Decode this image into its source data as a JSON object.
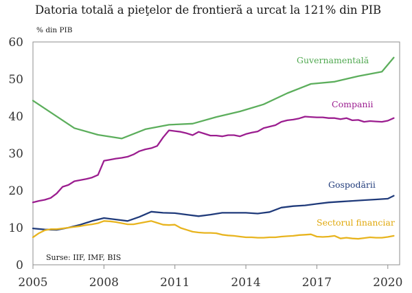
{
  "chart_data": {
    "type": "line",
    "title": "Datoria totală a pieţelor de frontieră a urcat la 121% din PIB",
    "ylabel": "% din PIB",
    "xlabel": "",
    "xlim": [
      2005,
      2020.5
    ],
    "ylim": [
      0,
      60
    ],
    "yticks": [
      0,
      10,
      20,
      30,
      40,
      50,
      60
    ],
    "xticks": [
      2005,
      2008,
      2011,
      2014,
      2017,
      2020
    ],
    "grid": false,
    "source": "Surse: IIF, IMF, BIS",
    "series": [
      {
        "name": "Guvernamentală",
        "color": "#5cae5c",
        "label_color": "#4fa84f",
        "points": [
          [
            2005.0,
            44.2
          ],
          [
            2006.75,
            36.8
          ],
          [
            2007.75,
            35.0
          ],
          [
            2008.75,
            34.0
          ],
          [
            2009.75,
            36.5
          ],
          [
            2010.75,
            37.7
          ],
          [
            2011.75,
            38.0
          ],
          [
            2012.75,
            39.8
          ],
          [
            2013.75,
            41.3
          ],
          [
            2014.75,
            43.2
          ],
          [
            2015.75,
            46.2
          ],
          [
            2016.75,
            48.7
          ],
          [
            2017.75,
            49.3
          ],
          [
            2018.75,
            50.8
          ],
          [
            2019.75,
            52.0
          ],
          [
            2020.25,
            55.8
          ]
        ]
      },
      {
        "name": "Companii",
        "color": "#9b1d8f",
        "label_color": "#9b1d8f",
        "points": [
          [
            2005.0,
            16.8
          ],
          [
            2005.25,
            17.2
          ],
          [
            2005.5,
            17.5
          ],
          [
            2005.75,
            18.0
          ],
          [
            2006.0,
            19.2
          ],
          [
            2006.25,
            21.0
          ],
          [
            2006.5,
            21.5
          ],
          [
            2006.75,
            22.5
          ],
          [
            2007.0,
            22.8
          ],
          [
            2007.25,
            23.1
          ],
          [
            2007.5,
            23.5
          ],
          [
            2007.75,
            24.2
          ],
          [
            2008.0,
            28.0
          ],
          [
            2008.25,
            28.3
          ],
          [
            2008.5,
            28.6
          ],
          [
            2008.75,
            28.8
          ],
          [
            2009.0,
            29.1
          ],
          [
            2009.25,
            29.7
          ],
          [
            2009.5,
            30.6
          ],
          [
            2009.75,
            31.1
          ],
          [
            2010.0,
            31.4
          ],
          [
            2010.25,
            32.0
          ],
          [
            2010.5,
            34.3
          ],
          [
            2010.75,
            36.2
          ],
          [
            2011.0,
            36.0
          ],
          [
            2011.25,
            35.8
          ],
          [
            2011.5,
            35.4
          ],
          [
            2011.75,
            34.9
          ],
          [
            2012.0,
            35.8
          ],
          [
            2012.25,
            35.3
          ],
          [
            2012.5,
            34.8
          ],
          [
            2012.75,
            34.8
          ],
          [
            2013.0,
            34.6
          ],
          [
            2013.25,
            34.9
          ],
          [
            2013.5,
            34.9
          ],
          [
            2013.75,
            34.6
          ],
          [
            2014.0,
            35.2
          ],
          [
            2014.25,
            35.6
          ],
          [
            2014.5,
            35.9
          ],
          [
            2014.75,
            36.8
          ],
          [
            2015.0,
            37.2
          ],
          [
            2015.25,
            37.6
          ],
          [
            2015.5,
            38.5
          ],
          [
            2015.75,
            38.9
          ],
          [
            2016.0,
            39.1
          ],
          [
            2016.25,
            39.4
          ],
          [
            2016.5,
            39.9
          ],
          [
            2016.75,
            39.8
          ],
          [
            2017.0,
            39.7
          ],
          [
            2017.25,
            39.7
          ],
          [
            2017.5,
            39.5
          ],
          [
            2017.75,
            39.5
          ],
          [
            2018.0,
            39.2
          ],
          [
            2018.25,
            39.5
          ],
          [
            2018.5,
            38.9
          ],
          [
            2018.75,
            39.0
          ],
          [
            2019.0,
            38.5
          ],
          [
            2019.25,
            38.7
          ],
          [
            2019.5,
            38.6
          ],
          [
            2019.75,
            38.5
          ],
          [
            2020.0,
            38.8
          ],
          [
            2020.25,
            39.5
          ]
        ]
      },
      {
        "name": "Gospodării",
        "color": "#1f3a7a",
        "label_color": "#1f3a7a",
        "points": [
          [
            2005.0,
            9.8
          ],
          [
            2005.5,
            9.5
          ],
          [
            2006.0,
            9.4
          ],
          [
            2006.5,
            10.0
          ],
          [
            2007.0,
            10.8
          ],
          [
            2007.5,
            11.8
          ],
          [
            2008.0,
            12.6
          ],
          [
            2008.5,
            12.2
          ],
          [
            2009.0,
            11.8
          ],
          [
            2009.5,
            12.9
          ],
          [
            2010.0,
            14.3
          ],
          [
            2010.5,
            14.0
          ],
          [
            2011.0,
            13.9
          ],
          [
            2011.5,
            13.5
          ],
          [
            2012.0,
            13.1
          ],
          [
            2012.5,
            13.5
          ],
          [
            2013.0,
            14.0
          ],
          [
            2013.5,
            14.0
          ],
          [
            2014.0,
            14.0
          ],
          [
            2014.5,
            13.8
          ],
          [
            2015.0,
            14.2
          ],
          [
            2015.5,
            15.4
          ],
          [
            2016.0,
            15.8
          ],
          [
            2016.5,
            16.0
          ],
          [
            2017.0,
            16.4
          ],
          [
            2017.5,
            16.8
          ],
          [
            2018.0,
            17.0
          ],
          [
            2018.5,
            17.2
          ],
          [
            2019.0,
            17.4
          ],
          [
            2019.5,
            17.6
          ],
          [
            2020.0,
            17.8
          ],
          [
            2020.25,
            18.6
          ]
        ]
      },
      {
        "name": "Sectorul financiar",
        "color": "#e8b41e",
        "label_color": "#e0a80c",
        "points": [
          [
            2005.0,
            7.4
          ],
          [
            2005.25,
            8.5
          ],
          [
            2005.5,
            9.3
          ],
          [
            2005.75,
            9.6
          ],
          [
            2006.0,
            9.6
          ],
          [
            2006.25,
            9.8
          ],
          [
            2006.5,
            10.0
          ],
          [
            2006.75,
            10.2
          ],
          [
            2007.0,
            10.4
          ],
          [
            2007.25,
            10.7
          ],
          [
            2007.5,
            10.9
          ],
          [
            2007.75,
            11.2
          ],
          [
            2008.0,
            11.8
          ],
          [
            2008.25,
            11.7
          ],
          [
            2008.5,
            11.5
          ],
          [
            2008.75,
            11.2
          ],
          [
            2009.0,
            10.9
          ],
          [
            2009.25,
            10.9
          ],
          [
            2009.5,
            11.2
          ],
          [
            2009.75,
            11.5
          ],
          [
            2010.0,
            11.8
          ],
          [
            2010.25,
            11.3
          ],
          [
            2010.5,
            10.8
          ],
          [
            2010.75,
            10.7
          ],
          [
            2011.0,
            10.8
          ],
          [
            2011.25,
            9.9
          ],
          [
            2011.5,
            9.4
          ],
          [
            2011.75,
            8.9
          ],
          [
            2012.0,
            8.7
          ],
          [
            2012.25,
            8.6
          ],
          [
            2012.5,
            8.6
          ],
          [
            2012.75,
            8.5
          ],
          [
            2013.0,
            8.1
          ],
          [
            2013.25,
            7.9
          ],
          [
            2013.5,
            7.8
          ],
          [
            2013.75,
            7.6
          ],
          [
            2014.0,
            7.4
          ],
          [
            2014.25,
            7.4
          ],
          [
            2014.5,
            7.3
          ],
          [
            2014.75,
            7.3
          ],
          [
            2015.0,
            7.4
          ],
          [
            2015.25,
            7.4
          ],
          [
            2015.5,
            7.6
          ],
          [
            2015.75,
            7.7
          ],
          [
            2016.0,
            7.8
          ],
          [
            2016.25,
            8.0
          ],
          [
            2016.5,
            8.1
          ],
          [
            2016.75,
            8.2
          ],
          [
            2017.0,
            7.6
          ],
          [
            2017.25,
            7.5
          ],
          [
            2017.5,
            7.6
          ],
          [
            2017.75,
            7.8
          ],
          [
            2018.0,
            7.1
          ],
          [
            2018.25,
            7.3
          ],
          [
            2018.5,
            7.1
          ],
          [
            2018.75,
            7.0
          ],
          [
            2019.0,
            7.2
          ],
          [
            2019.25,
            7.4
          ],
          [
            2019.5,
            7.3
          ],
          [
            2019.75,
            7.3
          ],
          [
            2020.0,
            7.5
          ],
          [
            2020.25,
            7.8
          ]
        ]
      }
    ]
  }
}
